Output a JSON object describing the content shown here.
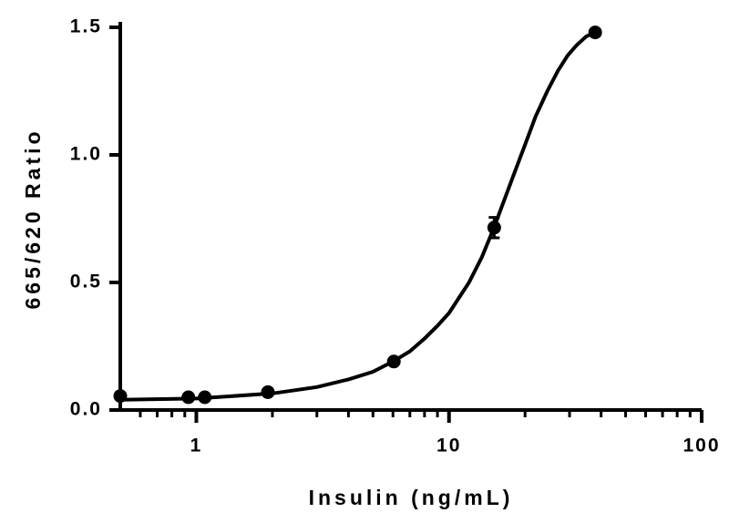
{
  "chart_data": {
    "type": "scatter",
    "xlabel": "Insulin (ng/mL)",
    "ylabel": "665/620 Ratio",
    "xscale": "log",
    "xlim": [
      0.5,
      100
    ],
    "ylim": [
      0,
      1.5
    ],
    "xticks": [
      1,
      10,
      100
    ],
    "xticks_minor": [
      0.6,
      0.7,
      0.8,
      0.9,
      2,
      3,
      4,
      5,
      6,
      7,
      8,
      9,
      20,
      30,
      40,
      50,
      60,
      70,
      80,
      90
    ],
    "yticks": [
      {
        "value": 0,
        "label": "0.0"
      },
      0.5,
      {
        "value": 1,
        "label": "1.0"
      },
      1.5
    ],
    "series": [
      {
        "kind": "points",
        "color": "#000000",
        "x": [
          0.5,
          0.93,
          1.08,
          1.92,
          6.05,
          15.1,
          37.9
        ],
        "values": [
          0.055,
          0.05,
          0.05,
          0.07,
          0.19,
          0.715,
          1.48
        ],
        "errors": [
          null,
          null,
          null,
          null,
          null,
          0.04,
          null
        ]
      },
      {
        "kind": "line",
        "color": "#000000",
        "x": [
          0.5,
          1,
          2,
          3,
          4,
          5,
          6,
          7,
          8,
          9,
          10,
          12,
          13.5,
          15,
          16.5,
          18,
          20,
          22,
          24.5,
          27,
          29.5,
          32,
          35,
          38
        ],
        "values": [
          0.04,
          0.045,
          0.065,
          0.09,
          0.12,
          0.15,
          0.19,
          0.23,
          0.28,
          0.33,
          0.38,
          0.5,
          0.6,
          0.71,
          0.82,
          0.92,
          1.04,
          1.15,
          1.25,
          1.33,
          1.39,
          1.43,
          1.465,
          1.48
        ]
      }
    ]
  }
}
